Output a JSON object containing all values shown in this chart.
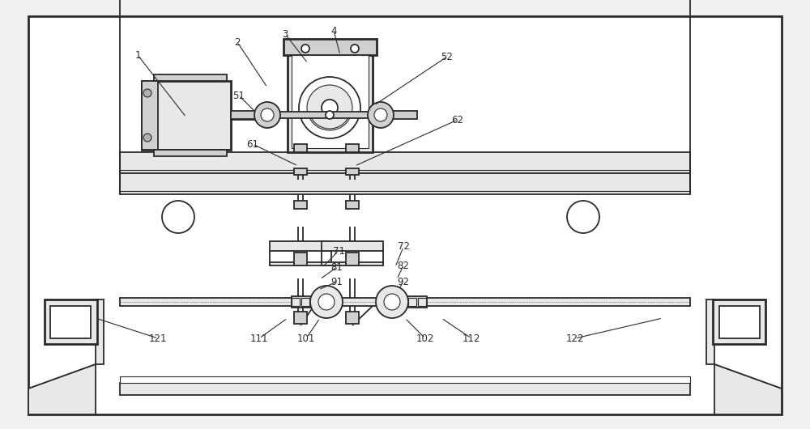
{
  "bg": "#f0f0f0",
  "lc": "#2a2a2a",
  "fc_light": "#e8e8e8",
  "fc_mid": "#d0d0d0",
  "fc_dark": "#b0b0b0",
  "fc_white": "#ffffff",
  "lw_thick": 2.0,
  "lw_med": 1.3,
  "lw_thin": 0.8,
  "annotations": [
    [
      "1",
      170,
      68,
      230,
      145
    ],
    [
      "2",
      293,
      52,
      330,
      108
    ],
    [
      "3",
      352,
      42,
      380,
      78
    ],
    [
      "4",
      412,
      38,
      420,
      68
    ],
    [
      "51",
      295,
      118,
      315,
      138
    ],
    [
      "52",
      552,
      70,
      462,
      130
    ],
    [
      "61",
      312,
      178,
      368,
      205
    ],
    [
      "62",
      565,
      148,
      438,
      205
    ],
    [
      "71",
      418,
      310,
      398,
      330
    ],
    [
      "72",
      498,
      305,
      488,
      330
    ],
    [
      "81",
      416,
      330,
      395,
      345
    ],
    [
      "82",
      498,
      328,
      490,
      345
    ],
    [
      "91",
      416,
      348,
      393,
      358
    ],
    [
      "92",
      498,
      348,
      492,
      358
    ],
    [
      "101",
      378,
      418,
      395,
      393
    ],
    [
      "102",
      525,
      418,
      500,
      393
    ],
    [
      "111",
      320,
      418,
      355,
      393
    ],
    [
      "112",
      582,
      418,
      545,
      393
    ],
    [
      "121",
      195,
      418,
      118,
      393
    ],
    [
      "122",
      710,
      418,
      818,
      393
    ]
  ]
}
